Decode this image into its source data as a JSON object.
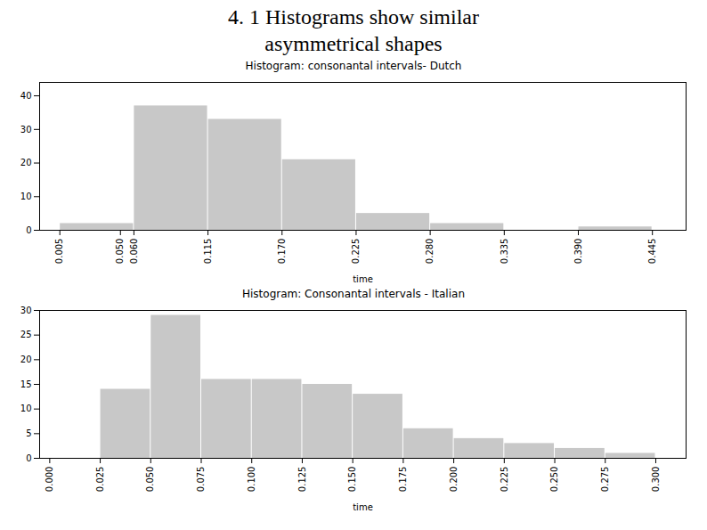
{
  "title": "4. 1 Histograms show similar\nasymmetrical shapes",
  "chart_data": [
    {
      "type": "histogram",
      "title": "Histogram: consonantal intervals- Dutch",
      "xlabel": "time",
      "x": [
        0.05,
        0.005,
        0.06,
        0.115,
        0.17,
        0.225,
        0.28,
        0.335,
        0.39,
        0.445
      ],
      "bin_width": 0.055,
      "values": [
        0,
        2,
        37,
        33,
        21,
        5,
        2,
        0,
        1,
        0
      ],
      "color": "#c8c8c8",
      "xlim": [
        -0.01,
        0.47
      ],
      "ylim": [
        0,
        44
      ],
      "xticks": [
        {
          "value": 0.05,
          "label": "0.050"
        },
        0.005,
        {
          "value": 0.06,
          "label": "0.060"
        },
        0.115,
        {
          "value": 0.17,
          "label": "0.170"
        },
        0.225,
        {
          "value": 0.28,
          "label": "0.280"
        },
        0.335,
        {
          "value": 0.39,
          "label": "0.390"
        },
        0.445
      ],
      "yticks": [
        0,
        10,
        20,
        30,
        40
      ],
      "grid": false
    },
    {
      "type": "histogram",
      "title": "Histogram: Consonantal intervals - Italian",
      "xlabel": "time",
      "x": [
        0,
        0.025,
        0.05,
        0.075,
        0.1,
        0.125,
        0.15,
        0.175,
        0.2,
        0.225,
        0.25,
        0.275
      ],
      "bin_width": 0.025,
      "values": [
        0,
        14,
        29,
        16,
        16,
        15,
        13,
        6,
        4,
        3,
        2,
        1
      ],
      "color": "#c8c8c8",
      "xlim": [
        -0.005,
        0.315
      ],
      "ylim": [
        0,
        30
      ],
      "xticks": [
        {
          "value": 0,
          "label": "0.000"
        },
        0.025,
        {
          "value": 0.05,
          "label": "0.050"
        },
        0.075,
        {
          "value": 0.1,
          "label": "0.100"
        },
        0.125,
        {
          "value": 0.15,
          "label": "0.150"
        },
        0.175,
        {
          "value": 0.2,
          "label": "0.200"
        },
        0.225,
        {
          "value": 0.25,
          "label": "0.250"
        },
        0.275,
        {
          "value": 0.3,
          "label": "0.300"
        }
      ],
      "yticks": [
        0,
        5,
        10,
        15,
        20,
        25,
        30
      ],
      "grid": false
    }
  ]
}
